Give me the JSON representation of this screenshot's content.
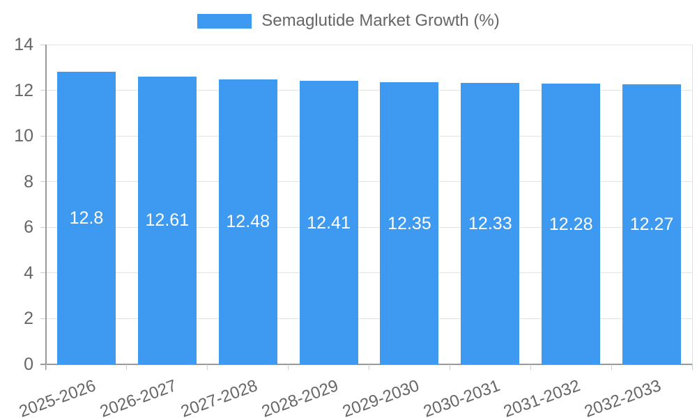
{
  "chart_data": {
    "type": "bar",
    "title": "Semaglutide Market Growth (%)",
    "legend_label": "Semaglutide Market Growth (%)",
    "legend_position": "top",
    "categories": [
      "2025-2026",
      "2026-2027",
      "2027-2028",
      "2028-2029",
      "2029-2030",
      "2030-2031",
      "2031-2032",
      "2032-2033"
    ],
    "values": [
      12.8,
      12.61,
      12.48,
      12.41,
      12.35,
      12.33,
      12.28,
      12.27
    ],
    "value_labels": [
      "12.8",
      "12.61",
      "12.48",
      "12.41",
      "12.35",
      "12.33",
      "12.28",
      "12.27"
    ],
    "xlabel": "",
    "ylabel": "",
    "ylim": [
      0,
      14
    ],
    "yticks": [
      0,
      2,
      4,
      6,
      8,
      10,
      12,
      14
    ],
    "grid": true,
    "colors": {
      "bar": "#3D9AF0",
      "value_label_text": "#FFFFFF",
      "axis_text": "#666666",
      "legend_text": "#666666",
      "grid_line": "#E3E3E3",
      "tick_mark": "#CCCCCC",
      "axis_line": "#999999",
      "background": "#FFFFFF"
    }
  }
}
